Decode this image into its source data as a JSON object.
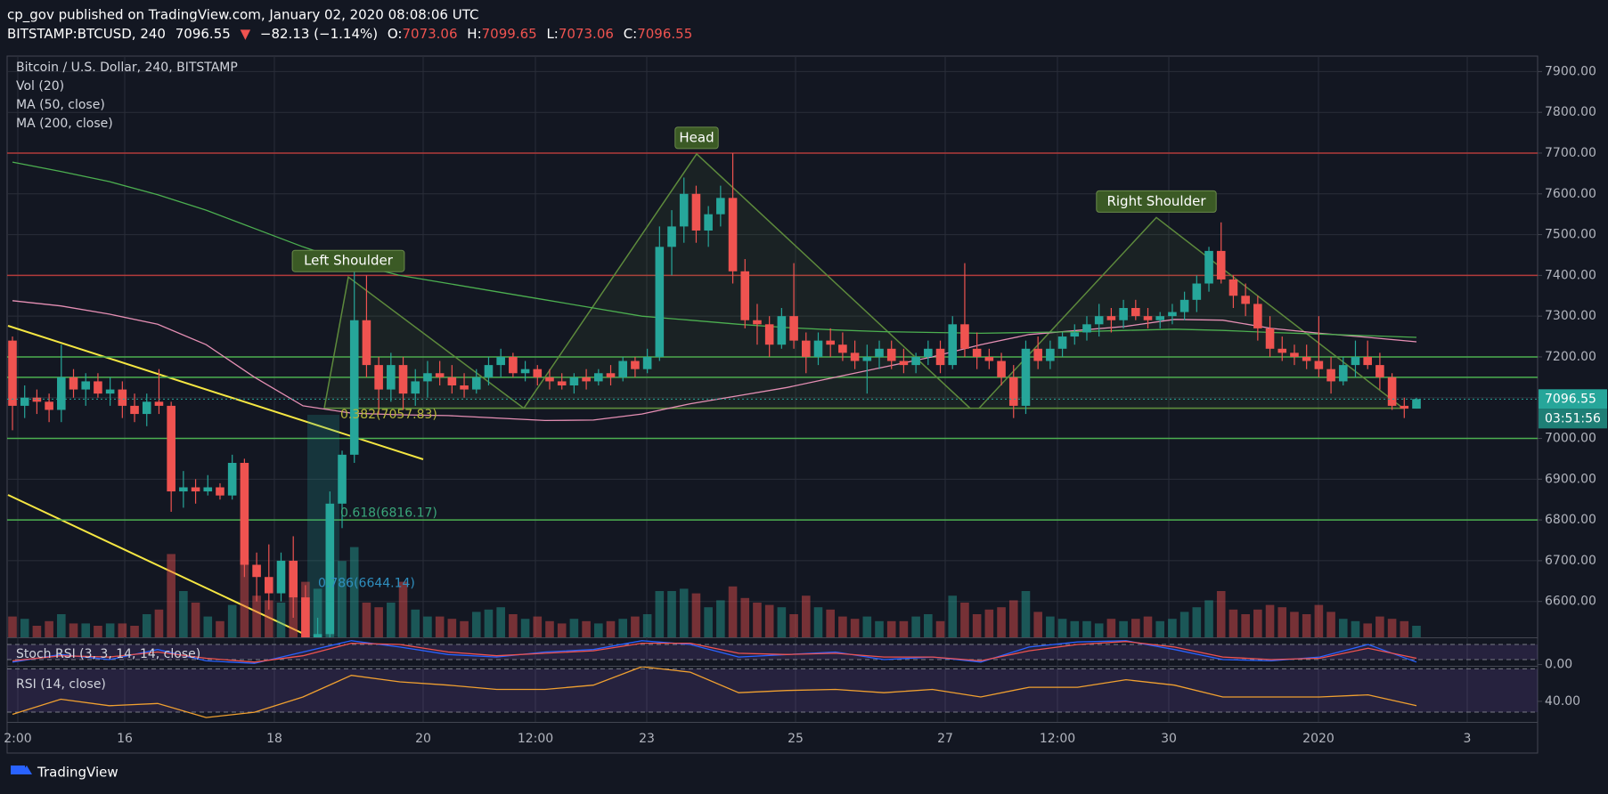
{
  "header": {
    "line1": "cp_gov published on TradingView.com, January 02, 2020 08:08:06 UTC",
    "symbol": "BITSTAMP:BTCUSD, 240",
    "arrow": "▼",
    "change": "−82.13 (−1.14%)",
    "o_label": "O:",
    "h_label": "H:",
    "l_label": "L:",
    "c_label": "C:"
  },
  "footer": {
    "brand": "TradingView"
  },
  "chart_data": {
    "type": "candlestick",
    "title": "Bitcoin / U.S. Dollar, 240, BITSTAMP",
    "volume_title": "Vol (20)",
    "up_color": "#26a69a",
    "down_color": "#ef5350",
    "ylim": [
      6512,
      7938
    ],
    "yticks": [
      {
        "value": 7900,
        "label": "7900.00"
      },
      {
        "value": 7800,
        "label": "7800.00"
      },
      {
        "value": 7700,
        "label": "7700.00"
      },
      {
        "value": 7600,
        "label": "7600.00"
      },
      {
        "value": 7500,
        "label": "7500.00"
      },
      {
        "value": 7400,
        "label": "7400.00"
      },
      {
        "value": 7300,
        "label": "7300.00"
      },
      {
        "value": 7200,
        "label": "7200.00"
      },
      {
        "value": 7100,
        "label": "7100.00"
      },
      {
        "value": 7000,
        "label": "7000.00"
      },
      {
        "value": 6900,
        "label": "6900.00"
      },
      {
        "value": 6800,
        "label": "6800.00"
      },
      {
        "value": 6700,
        "label": "6700.00"
      },
      {
        "value": 6600,
        "label": "6600.00"
      }
    ],
    "vol_ylim": [
      0,
      5000
    ],
    "grid": true,
    "x_labels": [
      "2:00",
      "16",
      "18",
      "20",
      "12:00",
      "23",
      "25",
      "27",
      "12:00",
      "30",
      "2020",
      "3"
    ],
    "candles": [
      [
        7240,
        7250,
        7020,
        7080,
        900
      ],
      [
        7080,
        7130,
        7050,
        7100,
        800
      ],
      [
        7100,
        7120,
        7060,
        7090,
        500
      ],
      [
        7090,
        7110,
        7040,
        7070,
        700
      ],
      [
        7070,
        7230,
        7040,
        7150,
        1000
      ],
      [
        7150,
        7170,
        7100,
        7120,
        600
      ],
      [
        7120,
        7160,
        7080,
        7140,
        600
      ],
      [
        7140,
        7160,
        7100,
        7110,
        500
      ],
      [
        7110,
        7150,
        7080,
        7120,
        600
      ],
      [
        7120,
        7140,
        7050,
        7080,
        600
      ],
      [
        7080,
        7110,
        7040,
        7060,
        500
      ],
      [
        7060,
        7110,
        7030,
        7090,
        1000
      ],
      [
        7090,
        7170,
        7060,
        7080,
        1200
      ],
      [
        7080,
        7090,
        6820,
        6870,
        3600
      ],
      [
        6870,
        6920,
        6830,
        6880,
        2000
      ],
      [
        6880,
        6900,
        6840,
        6870,
        1500
      ],
      [
        6870,
        6910,
        6860,
        6880,
        900
      ],
      [
        6880,
        6890,
        6850,
        6860,
        700
      ],
      [
        6860,
        6960,
        6850,
        6940,
        1400
      ],
      [
        6940,
        6950,
        6660,
        6690,
        3400
      ],
      [
        6690,
        6720,
        6600,
        6660,
        1800
      ],
      [
        6660,
        6740,
        6580,
        6620,
        1600
      ],
      [
        6620,
        6720,
        6600,
        6700,
        1500
      ],
      [
        6700,
        6760,
        6560,
        6610,
        1900
      ],
      [
        6610,
        6640,
        6440,
        6480,
        2400
      ],
      [
        6480,
        6560,
        6430,
        6520,
        2100
      ],
      [
        6520,
        6870,
        6500,
        6840,
        2700
      ],
      [
        6840,
        6970,
        6780,
        6960,
        3300
      ],
      [
        6960,
        7440,
        6940,
        7290,
        3900
      ],
      [
        7290,
        7400,
        7150,
        7180,
        1500
      ],
      [
        7180,
        7200,
        7060,
        7120,
        1300
      ],
      [
        7120,
        7210,
        7090,
        7180,
        1500
      ],
      [
        7180,
        7200,
        7070,
        7110,
        2400
      ],
      [
        7110,
        7170,
        7080,
        7140,
        1200
      ],
      [
        7140,
        7190,
        7100,
        7160,
        900
      ],
      [
        7160,
        7190,
        7130,
        7150,
        900
      ],
      [
        7150,
        7180,
        7110,
        7130,
        800
      ],
      [
        7130,
        7160,
        7100,
        7120,
        700
      ],
      [
        7120,
        7170,
        7110,
        7150,
        1100
      ],
      [
        7150,
        7200,
        7130,
        7180,
        1200
      ],
      [
        7180,
        7220,
        7150,
        7200,
        1300
      ],
      [
        7200,
        7210,
        7150,
        7160,
        1000
      ],
      [
        7160,
        7190,
        7140,
        7170,
        800
      ],
      [
        7170,
        7180,
        7130,
        7150,
        900
      ],
      [
        7150,
        7170,
        7120,
        7140,
        700
      ],
      [
        7140,
        7160,
        7120,
        7130,
        600
      ],
      [
        7130,
        7160,
        7110,
        7150,
        800
      ],
      [
        7150,
        7170,
        7120,
        7140,
        700
      ],
      [
        7140,
        7170,
        7130,
        7160,
        600
      ],
      [
        7160,
        7180,
        7130,
        7150,
        700
      ],
      [
        7150,
        7200,
        7140,
        7190,
        800
      ],
      [
        7190,
        7200,
        7150,
        7170,
        900
      ],
      [
        7170,
        7220,
        7160,
        7200,
        1000
      ],
      [
        7200,
        7520,
        7190,
        7470,
        2000
      ],
      [
        7470,
        7560,
        7400,
        7520,
        2000
      ],
      [
        7520,
        7640,
        7480,
        7600,
        2100
      ],
      [
        7600,
        7620,
        7480,
        7510,
        1900
      ],
      [
        7510,
        7570,
        7470,
        7550,
        1300
      ],
      [
        7550,
        7620,
        7520,
        7590,
        1600
      ],
      [
        7590,
        7700,
        7380,
        7410,
        2200
      ],
      [
        7410,
        7440,
        7270,
        7290,
        1700
      ],
      [
        7290,
        7330,
        7230,
        7280,
        1500
      ],
      [
        7280,
        7300,
        7200,
        7230,
        1400
      ],
      [
        7230,
        7320,
        7220,
        7300,
        1300
      ],
      [
        7300,
        7430,
        7220,
        7240,
        1000
      ],
      [
        7240,
        7260,
        7160,
        7200,
        1800
      ],
      [
        7200,
        7260,
        7180,
        7240,
        1300
      ],
      [
        7240,
        7270,
        7200,
        7230,
        1200
      ],
      [
        7230,
        7260,
        7190,
        7210,
        900
      ],
      [
        7210,
        7240,
        7170,
        7190,
        800
      ],
      [
        7190,
        7230,
        7110,
        7200,
        900
      ],
      [
        7200,
        7240,
        7170,
        7220,
        700
      ],
      [
        7220,
        7240,
        7170,
        7190,
        700
      ],
      [
        7190,
        7220,
        7160,
        7180,
        700
      ],
      [
        7180,
        7210,
        7160,
        7200,
        900
      ],
      [
        7200,
        7240,
        7180,
        7220,
        1000
      ],
      [
        7220,
        7240,
        7160,
        7180,
        700
      ],
      [
        7180,
        7300,
        7170,
        7280,
        1800
      ],
      [
        7280,
        7430,
        7200,
        7220,
        1500
      ],
      [
        7220,
        7260,
        7170,
        7200,
        1000
      ],
      [
        7200,
        7220,
        7170,
        7190,
        1200
      ],
      [
        7190,
        7210,
        7130,
        7150,
        1300
      ],
      [
        7150,
        7180,
        7050,
        7080,
        1600
      ],
      [
        7080,
        7240,
        7060,
        7220,
        2000
      ],
      [
        7220,
        7250,
        7170,
        7190,
        1100
      ],
      [
        7190,
        7240,
        7170,
        7220,
        900
      ],
      [
        7220,
        7260,
        7200,
        7250,
        800
      ],
      [
        7250,
        7280,
        7230,
        7260,
        700
      ],
      [
        7260,
        7300,
        7240,
        7280,
        700
      ],
      [
        7280,
        7330,
        7250,
        7300,
        600
      ],
      [
        7300,
        7320,
        7260,
        7290,
        800
      ],
      [
        7290,
        7340,
        7270,
        7320,
        700
      ],
      [
        7320,
        7340,
        7290,
        7300,
        800
      ],
      [
        7300,
        7320,
        7270,
        7290,
        900
      ],
      [
        7290,
        7310,
        7270,
        7300,
        700
      ],
      [
        7300,
        7330,
        7280,
        7310,
        800
      ],
      [
        7310,
        7360,
        7290,
        7340,
        1100
      ],
      [
        7340,
        7400,
        7310,
        7380,
        1300
      ],
      [
        7380,
        7470,
        7360,
        7460,
        1600
      ],
      [
        7460,
        7530,
        7380,
        7390,
        2000
      ],
      [
        7390,
        7400,
        7320,
        7350,
        1200
      ],
      [
        7350,
        7380,
        7300,
        7330,
        1000
      ],
      [
        7330,
        7350,
        7240,
        7270,
        1200
      ],
      [
        7270,
        7300,
        7200,
        7220,
        1400
      ],
      [
        7220,
        7250,
        7190,
        7210,
        1300
      ],
      [
        7210,
        7230,
        7180,
        7200,
        1100
      ],
      [
        7200,
        7230,
        7170,
        7190,
        1000
      ],
      [
        7190,
        7300,
        7150,
        7170,
        1400
      ],
      [
        7170,
        7200,
        7110,
        7140,
        1100
      ],
      [
        7140,
        7200,
        7130,
        7180,
        800
      ],
      [
        7180,
        7240,
        7150,
        7200,
        700
      ],
      [
        7200,
        7240,
        7170,
        7180,
        600
      ],
      [
        7180,
        7210,
        7120,
        7150,
        900
      ],
      [
        7150,
        7160,
        7070,
        7080,
        800
      ],
      [
        7080,
        7100,
        7050,
        7073.06,
        700
      ],
      [
        7073.06,
        7099.65,
        7073.06,
        7096.55,
        500
      ]
    ],
    "series": [
      {
        "name": "MA (50, close)",
        "color": "#e58fb4",
        "values": [
          7338,
          7325,
          7305,
          7280,
          7230,
          7150,
          7080,
          7062,
          7058,
          7056,
          7050,
          7044,
          7045,
          7060,
          7085,
          7105,
          7125,
          7150,
          7175,
          7200,
          7230,
          7255,
          7265,
          7275,
          7292,
          7290,
          7270,
          7258,
          7248,
          7237
        ]
      },
      {
        "name": "MA (200, close)",
        "color": "#4caf50",
        "values": [
          7678,
          7655,
          7630,
          7598,
          7560,
          7515,
          7470,
          7430,
          7400,
          7380,
          7360,
          7340,
          7320,
          7300,
          7290,
          7280,
          7272,
          7266,
          7262,
          7260,
          7258,
          7260,
          7262,
          7265,
          7268,
          7265,
          7260,
          7256,
          7252,
          7248
        ]
      }
    ],
    "levels": [
      {
        "value": 7700,
        "color": "#b23b3b"
      },
      {
        "value": 7400,
        "color": "#b23b3b"
      },
      {
        "value": 7200,
        "color": "#4caf50"
      },
      {
        "value": 7150,
        "color": "#4caf50"
      },
      {
        "value": 7000,
        "color": "#4caf50"
      },
      {
        "value": 6800,
        "color": "#4caf50"
      }
    ],
    "fib": [
      {
        "label": "0.382(7057.83)",
        "value": 7057.83,
        "color": "#b5b53a"
      },
      {
        "label": "0.618(6816.17)",
        "value": 6816.17,
        "color": "#3aa67a"
      },
      {
        "label": "0.786(6644.14)",
        "value": 6644.14,
        "color": "#2f8fbf"
      }
    ],
    "pattern": {
      "names": [
        "Left Shoulder",
        "Head",
        "Right Shoulder"
      ],
      "peaks": [
        7396,
        7698,
        7542
      ],
      "neckline": 7074,
      "color": "#5d8a3c"
    },
    "timer": "03:51:56",
    "stoch": {
      "title": "Stoch RSI (3, 3, 14, 14, close)",
      "ylim": [
        -5,
        105
      ],
      "yticks": [
        {
          "value": 0,
          "label": "0.00"
        }
      ],
      "bands": [
        20,
        80
      ],
      "k_color": "#2962ff",
      "d_color": "#ef5350",
      "k_values": [
        10,
        40,
        20,
        60,
        15,
        5,
        50,
        95,
        70,
        40,
        30,
        50,
        60,
        95,
        80,
        30,
        40,
        50,
        20,
        30,
        10,
        70,
        90,
        95,
        60,
        20,
        15,
        30,
        80,
        10
      ],
      "d_values": [
        15,
        35,
        30,
        50,
        25,
        10,
        35,
        85,
        80,
        50,
        35,
        45,
        55,
        85,
        85,
        45,
        40,
        45,
        30,
        30,
        15,
        55,
        80,
        92,
        70,
        30,
        20,
        25,
        65,
        25
      ]
    },
    "rsi": {
      "title": "RSI (14, close)",
      "ylim": [
        21,
        72
      ],
      "yticks": [
        {
          "value": 40,
          "label": "40.00"
        }
      ],
      "bands": [
        30,
        70
      ],
      "color": "#f0a030",
      "values": [
        28,
        42,
        36,
        38,
        25,
        30,
        44,
        64,
        58,
        55,
        51,
        51,
        55,
        72,
        67,
        48,
        50,
        51,
        48,
        51,
        44,
        53,
        53,
        60,
        55,
        44,
        44,
        44,
        46,
        36
      ]
    }
  }
}
